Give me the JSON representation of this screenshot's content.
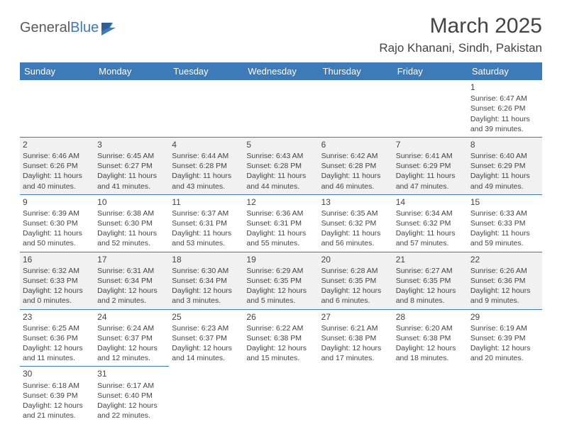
{
  "logo": {
    "text_general": "General",
    "text_blue": "Blue"
  },
  "title": "March 2025",
  "location": "Rajo Khanani, Sindh, Pakistan",
  "colors": {
    "header_bg": "#3d7ab8",
    "header_fg": "#ffffff",
    "rule": "#3d7ab8",
    "shaded_bg": "#f1f1f1",
    "text": "#444444",
    "logo_gray": "#5a5a5a",
    "logo_blue": "#3d7ab8"
  },
  "typography": {
    "title_fontsize_pt": 22,
    "location_fontsize_pt": 13,
    "dayheader_fontsize_pt": 10,
    "cell_fontsize_pt": 8,
    "font_family": "Arial"
  },
  "day_headers": [
    "Sunday",
    "Monday",
    "Tuesday",
    "Wednesday",
    "Thursday",
    "Friday",
    "Saturday"
  ],
  "weeks": [
    [
      null,
      null,
      null,
      null,
      null,
      null,
      {
        "n": "1",
        "sunrise": "Sunrise: 6:47 AM",
        "sunset": "Sunset: 6:26 PM",
        "daylight": "Daylight: 11 hours and 39 minutes."
      }
    ],
    [
      {
        "n": "2",
        "sunrise": "Sunrise: 6:46 AM",
        "sunset": "Sunset: 6:26 PM",
        "daylight": "Daylight: 11 hours and 40 minutes."
      },
      {
        "n": "3",
        "sunrise": "Sunrise: 6:45 AM",
        "sunset": "Sunset: 6:27 PM",
        "daylight": "Daylight: 11 hours and 41 minutes."
      },
      {
        "n": "4",
        "sunrise": "Sunrise: 6:44 AM",
        "sunset": "Sunset: 6:28 PM",
        "daylight": "Daylight: 11 hours and 43 minutes."
      },
      {
        "n": "5",
        "sunrise": "Sunrise: 6:43 AM",
        "sunset": "Sunset: 6:28 PM",
        "daylight": "Daylight: 11 hours and 44 minutes."
      },
      {
        "n": "6",
        "sunrise": "Sunrise: 6:42 AM",
        "sunset": "Sunset: 6:28 PM",
        "daylight": "Daylight: 11 hours and 46 minutes."
      },
      {
        "n": "7",
        "sunrise": "Sunrise: 6:41 AM",
        "sunset": "Sunset: 6:29 PM",
        "daylight": "Daylight: 11 hours and 47 minutes."
      },
      {
        "n": "8",
        "sunrise": "Sunrise: 6:40 AM",
        "sunset": "Sunset: 6:29 PM",
        "daylight": "Daylight: 11 hours and 49 minutes."
      }
    ],
    [
      {
        "n": "9",
        "sunrise": "Sunrise: 6:39 AM",
        "sunset": "Sunset: 6:30 PM",
        "daylight": "Daylight: 11 hours and 50 minutes."
      },
      {
        "n": "10",
        "sunrise": "Sunrise: 6:38 AM",
        "sunset": "Sunset: 6:30 PM",
        "daylight": "Daylight: 11 hours and 52 minutes."
      },
      {
        "n": "11",
        "sunrise": "Sunrise: 6:37 AM",
        "sunset": "Sunset: 6:31 PM",
        "daylight": "Daylight: 11 hours and 53 minutes."
      },
      {
        "n": "12",
        "sunrise": "Sunrise: 6:36 AM",
        "sunset": "Sunset: 6:31 PM",
        "daylight": "Daylight: 11 hours and 55 minutes."
      },
      {
        "n": "13",
        "sunrise": "Sunrise: 6:35 AM",
        "sunset": "Sunset: 6:32 PM",
        "daylight": "Daylight: 11 hours and 56 minutes."
      },
      {
        "n": "14",
        "sunrise": "Sunrise: 6:34 AM",
        "sunset": "Sunset: 6:32 PM",
        "daylight": "Daylight: 11 hours and 57 minutes."
      },
      {
        "n": "15",
        "sunrise": "Sunrise: 6:33 AM",
        "sunset": "Sunset: 6:33 PM",
        "daylight": "Daylight: 11 hours and 59 minutes."
      }
    ],
    [
      {
        "n": "16",
        "sunrise": "Sunrise: 6:32 AM",
        "sunset": "Sunset: 6:33 PM",
        "daylight": "Daylight: 12 hours and 0 minutes."
      },
      {
        "n": "17",
        "sunrise": "Sunrise: 6:31 AM",
        "sunset": "Sunset: 6:34 PM",
        "daylight": "Daylight: 12 hours and 2 minutes."
      },
      {
        "n": "18",
        "sunrise": "Sunrise: 6:30 AM",
        "sunset": "Sunset: 6:34 PM",
        "daylight": "Daylight: 12 hours and 3 minutes."
      },
      {
        "n": "19",
        "sunrise": "Sunrise: 6:29 AM",
        "sunset": "Sunset: 6:35 PM",
        "daylight": "Daylight: 12 hours and 5 minutes."
      },
      {
        "n": "20",
        "sunrise": "Sunrise: 6:28 AM",
        "sunset": "Sunset: 6:35 PM",
        "daylight": "Daylight: 12 hours and 6 minutes."
      },
      {
        "n": "21",
        "sunrise": "Sunrise: 6:27 AM",
        "sunset": "Sunset: 6:35 PM",
        "daylight": "Daylight: 12 hours and 8 minutes."
      },
      {
        "n": "22",
        "sunrise": "Sunrise: 6:26 AM",
        "sunset": "Sunset: 6:36 PM",
        "daylight": "Daylight: 12 hours and 9 minutes."
      }
    ],
    [
      {
        "n": "23",
        "sunrise": "Sunrise: 6:25 AM",
        "sunset": "Sunset: 6:36 PM",
        "daylight": "Daylight: 12 hours and 11 minutes."
      },
      {
        "n": "24",
        "sunrise": "Sunrise: 6:24 AM",
        "sunset": "Sunset: 6:37 PM",
        "daylight": "Daylight: 12 hours and 12 minutes."
      },
      {
        "n": "25",
        "sunrise": "Sunrise: 6:23 AM",
        "sunset": "Sunset: 6:37 PM",
        "daylight": "Daylight: 12 hours and 14 minutes."
      },
      {
        "n": "26",
        "sunrise": "Sunrise: 6:22 AM",
        "sunset": "Sunset: 6:38 PM",
        "daylight": "Daylight: 12 hours and 15 minutes."
      },
      {
        "n": "27",
        "sunrise": "Sunrise: 6:21 AM",
        "sunset": "Sunset: 6:38 PM",
        "daylight": "Daylight: 12 hours and 17 minutes."
      },
      {
        "n": "28",
        "sunrise": "Sunrise: 6:20 AM",
        "sunset": "Sunset: 6:38 PM",
        "daylight": "Daylight: 12 hours and 18 minutes."
      },
      {
        "n": "29",
        "sunrise": "Sunrise: 6:19 AM",
        "sunset": "Sunset: 6:39 PM",
        "daylight": "Daylight: 12 hours and 20 minutes."
      }
    ],
    [
      {
        "n": "30",
        "sunrise": "Sunrise: 6:18 AM",
        "sunset": "Sunset: 6:39 PM",
        "daylight": "Daylight: 12 hours and 21 minutes."
      },
      {
        "n": "31",
        "sunrise": "Sunrise: 6:17 AM",
        "sunset": "Sunset: 6:40 PM",
        "daylight": "Daylight: 12 hours and 22 minutes."
      },
      null,
      null,
      null,
      null,
      null
    ]
  ],
  "shaded_rows": [
    1,
    3
  ]
}
